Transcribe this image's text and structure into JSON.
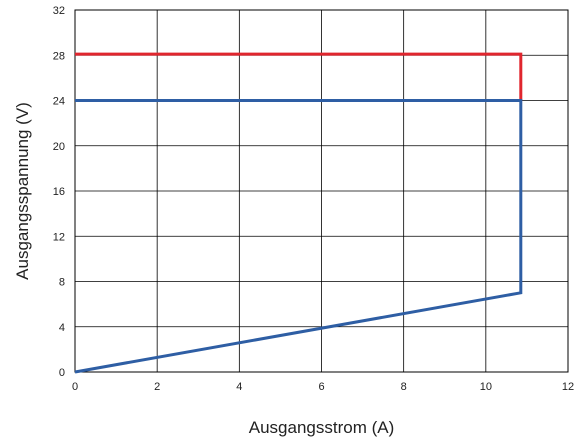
{
  "chart_data": {
    "type": "line",
    "title": "",
    "xlabel": "Ausgangsstrom (A)",
    "ylabel": "Ausgangsspannung (V)",
    "xlim": [
      0,
      12
    ],
    "ylim": [
      0,
      32
    ],
    "xticks": [
      0,
      2,
      4,
      6,
      8,
      10,
      12
    ],
    "yticks": [
      0,
      4,
      8,
      12,
      16,
      20,
      24,
      28,
      32
    ],
    "grid": true,
    "legend": "none",
    "series": [
      {
        "color": "#e0262e",
        "x": [
          0,
          10.85,
          10.85
        ],
        "y": [
          28.1,
          28.1,
          24
        ]
      },
      {
        "color": "#2e5ea4",
        "x": [
          0,
          10.85,
          10.85,
          0
        ],
        "y": [
          24,
          24,
          7.0,
          0
        ]
      }
    ]
  }
}
